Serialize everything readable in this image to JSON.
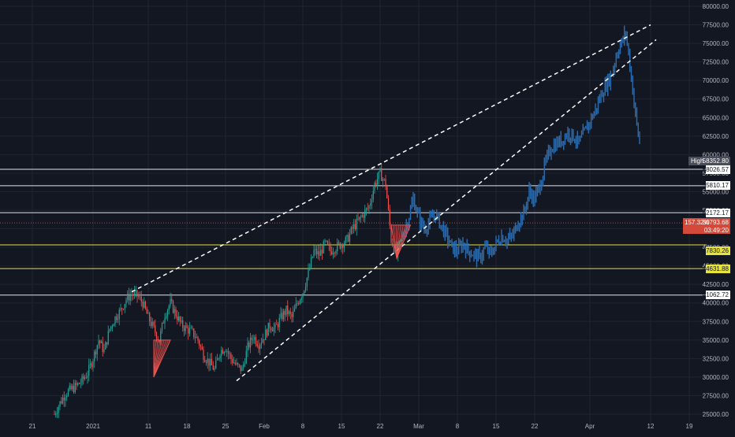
{
  "colors": {
    "background": "#131722",
    "grid": "#1f2433",
    "axis_text": "#b2b5be",
    "candle_up": "#26a69a",
    "candle_down": "#ef5350",
    "blue": "#2b6cb0",
    "white_line": "#e0e3eb",
    "yellow_line": "#e8e33a",
    "price_line": "#c0443a",
    "label_bg": "#1e222d",
    "label_dark_bg": "#2a2e39",
    "yellow_label_bg": "#131722",
    "high_label_bg": "#4a4e5a",
    "current_bg": "#d44a3a"
  },
  "chart_data": {
    "type": "line",
    "title": "",
    "xlabel": "",
    "ylabel": "",
    "ylim": [
      24500,
      81000
    ],
    "grid": true,
    "x_tick_labels": [
      "21",
      "2021",
      "11",
      "18",
      "25",
      "Feb",
      "8",
      "15",
      "22",
      "Mar",
      "8",
      "15",
      "22",
      "Apr",
      "12",
      "19"
    ],
    "x_tick_days": [
      -11,
      0,
      10,
      17,
      24,
      31,
      38,
      45,
      52,
      59,
      66,
      73,
      80,
      90,
      101,
      108
    ],
    "y_ticks": [
      25000,
      27500,
      30000,
      32500,
      35000,
      37500,
      40000,
      42500,
      45000,
      47500,
      50000,
      52500,
      55000,
      57500,
      60000,
      62500,
      65000,
      67500,
      70000,
      72500,
      75000,
      77500,
      80000
    ],
    "y_tick_labels": [
      "25000.00",
      "27500.00",
      "30000.00",
      "32500.00",
      "35000.00",
      "37500.00",
      "40000.00",
      "42500.00",
      "45000.00",
      "47500.00",
      "50000.00",
      "52500.00",
      "55000.00",
      "57500.00",
      "60000.00",
      "62500.00",
      "65000.00",
      "67500.00",
      "70000.00",
      "72500.00",
      "75000.00",
      "77500.00",
      "80000.00"
    ],
    "candle_series": [
      [
        -7,
        25000
      ],
      [
        -6,
        26500
      ],
      [
        -5,
        27800
      ],
      [
        -4,
        28300
      ],
      [
        -3,
        28800
      ],
      [
        -2,
        29500
      ],
      [
        -1,
        30500
      ],
      [
        0,
        32500
      ],
      [
        1,
        35000
      ],
      [
        2,
        33500
      ],
      [
        3,
        36500
      ],
      [
        4,
        38000
      ],
      [
        5,
        39000
      ],
      [
        6,
        40500
      ],
      [
        7,
        41200
      ],
      [
        8,
        41000
      ],
      [
        9,
        40000
      ],
      [
        10,
        38000
      ],
      [
        11,
        36500
      ],
      [
        12,
        35000
      ],
      [
        13,
        38500
      ],
      [
        14,
        40000
      ],
      [
        15,
        38500
      ],
      [
        16,
        37000
      ],
      [
        17,
        36500
      ],
      [
        18,
        36000
      ],
      [
        19,
        35000
      ],
      [
        20,
        33000
      ],
      [
        21,
        32000
      ],
      [
        22,
        31000
      ],
      [
        23,
        33500
      ],
      [
        24,
        34000
      ],
      [
        25,
        32500
      ],
      [
        26,
        31500
      ],
      [
        27,
        31000
      ],
      [
        28,
        34000
      ],
      [
        29,
        35500
      ],
      [
        30,
        34500
      ],
      [
        31,
        35500
      ],
      [
        32,
        37000
      ],
      [
        33,
        36500
      ],
      [
        34,
        38000
      ],
      [
        35,
        39000
      ],
      [
        36,
        38000
      ],
      [
        37,
        40000
      ],
      [
        38,
        41500
      ],
      [
        39,
        44000
      ],
      [
        40,
        47000
      ],
      [
        41,
        46500
      ],
      [
        42,
        48000
      ],
      [
        43,
        47000
      ],
      [
        44,
        47500
      ],
      [
        45,
        48000
      ],
      [
        46,
        48500
      ],
      [
        47,
        50000
      ],
      [
        48,
        51000
      ],
      [
        49,
        52000
      ],
      [
        50,
        53000
      ],
      [
        51,
        56000
      ],
      [
        52,
        57500
      ],
      [
        53,
        56000
      ],
      [
        54,
        48500
      ],
      [
        55,
        46500
      ],
      [
        56,
        49000
      ]
    ],
    "blue_series": [
      [
        56,
        49000
      ],
      [
        57,
        51000
      ],
      [
        58,
        54000
      ],
      [
        59,
        51500
      ],
      [
        60,
        50000
      ],
      [
        61,
        51000
      ],
      [
        62,
        52000
      ],
      [
        63,
        50500
      ],
      [
        64,
        49000
      ],
      [
        65,
        47500
      ],
      [
        66,
        47000
      ],
      [
        67,
        48000
      ],
      [
        68,
        47000
      ],
      [
        69,
        46500
      ],
      [
        70,
        46000
      ],
      [
        71,
        47500
      ],
      [
        72,
        46500
      ],
      [
        73,
        48000
      ],
      [
        74,
        49000
      ],
      [
        75,
        48500
      ],
      [
        76,
        49000
      ],
      [
        77,
        51000
      ],
      [
        78,
        52000
      ],
      [
        79,
        55000
      ],
      [
        80,
        54000
      ],
      [
        81,
        56000
      ],
      [
        82,
        59000
      ],
      [
        83,
        61000
      ],
      [
        84,
        61500
      ],
      [
        85,
        62000
      ],
      [
        86,
        63000
      ],
      [
        87,
        62500
      ],
      [
        88,
        61500
      ],
      [
        89,
        63000
      ],
      [
        90,
        64500
      ],
      [
        91,
        66000
      ],
      [
        92,
        68000
      ],
      [
        93,
        69500
      ],
      [
        94,
        71000
      ],
      [
        95,
        74000
      ],
      [
        96,
        75500
      ],
      [
        96.5,
        76500
      ],
      [
        97,
        73500
      ],
      [
        97.5,
        70500
      ],
      [
        98,
        67000
      ],
      [
        98.5,
        64000
      ],
      [
        99,
        61500
      ]
    ],
    "horizontal_levels": [
      {
        "value": 58026.57,
        "color": "white"
      },
      {
        "value": 55810.17,
        "color": "white"
      },
      {
        "value": 52172.17,
        "color": "white"
      },
      {
        "value": 47830.26,
        "color": "yellow"
      },
      {
        "value": 44631.88,
        "color": "yellow"
      },
      {
        "value": 41062.72,
        "color": "white"
      }
    ],
    "current_price": 50793.68,
    "trend_lines": [
      {
        "from": [
          7,
          41500
        ],
        "to": [
          101,
          77500
        ]
      },
      {
        "from": [
          26,
          29500
        ],
        "to": [
          102,
          75500
        ]
      }
    ],
    "triangles": [
      {
        "points": [
          [
            11,
            35000
          ],
          [
            14,
            35000
          ],
          [
            11,
            30000
          ]
        ]
      },
      {
        "points": [
          [
            54,
            50500
          ],
          [
            57.5,
            50500
          ],
          [
            55,
            46000
          ]
        ]
      }
    ]
  },
  "labels": {
    "high_label": "High",
    "high_value": "58352.80",
    "level_58026": "58026.57",
    "level_55810": "55810.17",
    "level_52172": "52172.17",
    "current_percent": "157.32%",
    "current_value": "50793.68",
    "countdown": "03:49:20",
    "level_47830": "47830.26",
    "level_44631": "44631.88",
    "level_41062": "41062.72"
  }
}
